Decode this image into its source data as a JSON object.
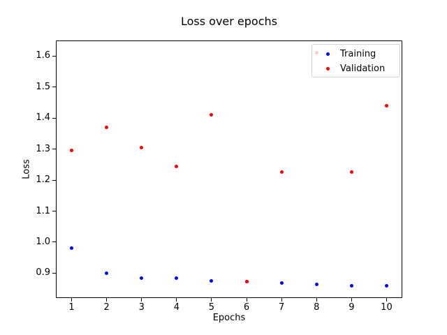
{
  "figure": {
    "background": "#ffffff"
  },
  "chart_data": {
    "type": "scatter",
    "title": "Loss over epochs",
    "xlabel": "Epochs",
    "ylabel": "Loss",
    "x": [
      1,
      2,
      3,
      4,
      5,
      6,
      7,
      8,
      9,
      10
    ],
    "series": [
      {
        "name": "Training",
        "color": "#0000ff",
        "values": [
          0.98,
          0.9,
          0.884,
          0.884,
          0.874,
          0.873,
          0.869,
          0.863,
          0.86,
          0.86
        ]
      },
      {
        "name": "Validation",
        "color": "#ff0000",
        "values": [
          1.295,
          1.37,
          1.305,
          1.245,
          1.41,
          0.873,
          1.225,
          1.61,
          1.225,
          1.44
        ]
      }
    ],
    "xticks": [
      1,
      2,
      3,
      4,
      5,
      6,
      7,
      8,
      9,
      10
    ],
    "yticks": [
      0.9,
      1.0,
      1.1,
      1.2,
      1.3,
      1.4,
      1.5,
      1.6
    ],
    "xlim": [
      0.55,
      10.45
    ],
    "ylim": [
      0.82,
      1.65
    ],
    "grid": false,
    "legend_position": "upper right",
    "note": "Validation point at epoch 8 (1.61) is partially hidden behind the semi-transparent legend; at epoch 6 the red validation dot overlaps the blue training dot."
  }
}
